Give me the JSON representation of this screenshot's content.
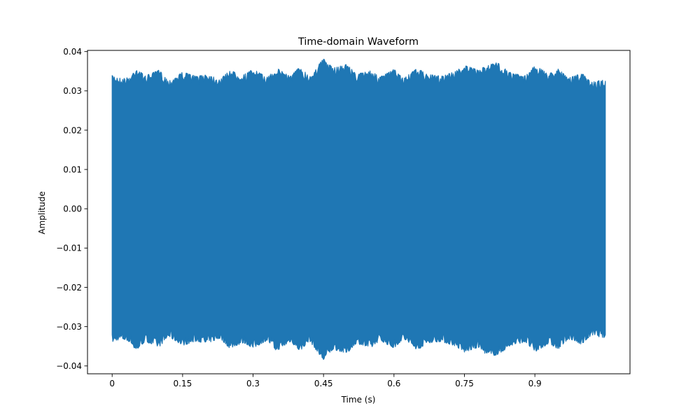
{
  "chart_data": {
    "type": "line",
    "title": "Time-domain Waveform",
    "xlabel": "Time (s)",
    "ylabel": "Amplitude",
    "xlim": [
      -0.0525,
      1.1025
    ],
    "ylim": [
      -0.042,
      0.0403
    ],
    "x_ticks": [
      0,
      0.15,
      0.3,
      0.45,
      0.6,
      0.75,
      0.9
    ],
    "x_tick_labels": [
      "0",
      "0.15",
      "0.3",
      "0.45",
      "0.6",
      "0.75",
      "0.9"
    ],
    "y_ticks": [
      -0.04,
      -0.03,
      -0.02,
      -0.01,
      0.0,
      0.01,
      0.02,
      0.03,
      0.04
    ],
    "y_tick_labels": [
      "−0.04",
      "−0.03",
      "−0.02",
      "−0.01",
      "0.00",
      "0.01",
      "0.02",
      "0.03",
      "0.04"
    ],
    "grid": false,
    "series": [
      {
        "name": "waveform",
        "color": "#1f77b4",
        "x_range": [
          0,
          1.05
        ],
        "envelope": {
          "t": [
            0,
            0.02,
            0.04,
            0.05,
            0.07,
            0.1,
            0.12,
            0.15,
            0.18,
            0.2,
            0.23,
            0.25,
            0.28,
            0.3,
            0.33,
            0.35,
            0.38,
            0.4,
            0.42,
            0.44,
            0.45,
            0.47,
            0.5,
            0.52,
            0.55,
            0.57,
            0.6,
            0.62,
            0.65,
            0.67,
            0.7,
            0.73,
            0.75,
            0.78,
            0.8,
            0.82,
            0.85,
            0.88,
            0.9,
            0.93,
            0.95,
            0.97,
            1.0,
            1.02,
            1.05
          ],
          "max": [
            0.0339,
            0.0331,
            0.0335,
            0.0359,
            0.0338,
            0.0353,
            0.0325,
            0.0348,
            0.0337,
            0.0343,
            0.033,
            0.0352,
            0.0341,
            0.0355,
            0.0335,
            0.0358,
            0.0338,
            0.0362,
            0.0336,
            0.0368,
            0.0382,
            0.0358,
            0.0368,
            0.0342,
            0.0352,
            0.0335,
            0.0355,
            0.0331,
            0.0358,
            0.0342,
            0.0338,
            0.0349,
            0.0365,
            0.0353,
            0.0366,
            0.0372,
            0.0345,
            0.0339,
            0.0365,
            0.0343,
            0.0358,
            0.0332,
            0.0345,
            0.0322,
            0.0329
          ],
          "min": [
            -0.0339,
            -0.0331,
            -0.034,
            -0.0362,
            -0.0338,
            -0.0352,
            -0.0325,
            -0.0348,
            -0.0337,
            -0.0343,
            -0.033,
            -0.0355,
            -0.0341,
            -0.0355,
            -0.0335,
            -0.0362,
            -0.0338,
            -0.0362,
            -0.0336,
            -0.037,
            -0.0385,
            -0.0358,
            -0.0368,
            -0.0342,
            -0.0355,
            -0.0335,
            -0.0355,
            -0.0331,
            -0.036,
            -0.0342,
            -0.0338,
            -0.0349,
            -0.0365,
            -0.0353,
            -0.0375,
            -0.0372,
            -0.0348,
            -0.0339,
            -0.0365,
            -0.0343,
            -0.0358,
            -0.0332,
            -0.0345,
            -0.0322,
            -0.0329
          ]
        }
      }
    ]
  }
}
